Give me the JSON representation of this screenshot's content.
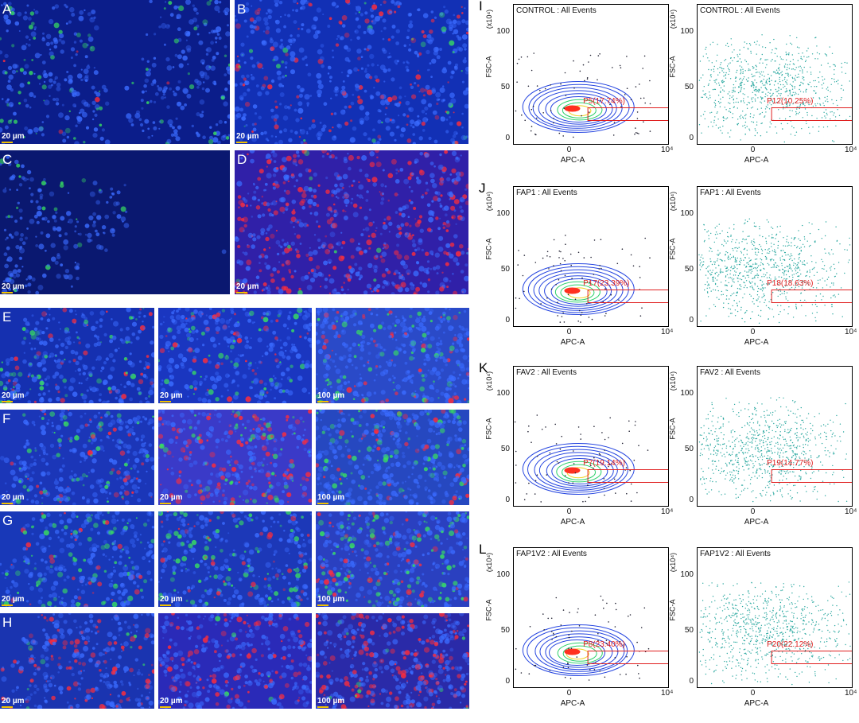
{
  "micro_panels": [
    {
      "id": "A",
      "label": "A",
      "scale": "20 µm"
    },
    {
      "id": "B",
      "label": "B",
      "scale": "20 µm"
    },
    {
      "id": "C",
      "label": "C",
      "scale": "20 µm"
    },
    {
      "id": "D",
      "label": "D",
      "scale": "20 µm"
    }
  ],
  "grid_rows": [
    {
      "label": "E",
      "scales": [
        "20 µm",
        "20 µm",
        "100 µm"
      ]
    },
    {
      "label": "F",
      "scales": [
        "20 µm",
        "20 µm",
        "100 µm"
      ]
    },
    {
      "label": "G",
      "scales": [
        "20 µm",
        "20 µm",
        "100 µm"
      ]
    },
    {
      "label": "H",
      "scales": [
        "20 µm",
        "20 µm",
        "100 µm"
      ]
    }
  ],
  "flow_rows": [
    {
      "label": "I",
      "left": {
        "title": "CONTROL : All Events",
        "gate": "P5(17.74%)"
      },
      "right": {
        "title": "CONTROL : All Events",
        "gate": "P12(10.25%)"
      }
    },
    {
      "label": "J",
      "left": {
        "title": "FAP1 : All Events",
        "gate": "P17(23.39%)"
      },
      "right": {
        "title": "FAP1 : All Events",
        "gate": "P18(18.63%)"
      }
    },
    {
      "label": "K",
      "left": {
        "title": "FAV2 : All Events",
        "gate": "P7(19.14%)"
      },
      "right": {
        "title": "FAV2 : All Events",
        "gate": "P19(14.77%)"
      }
    },
    {
      "label": "L",
      "left": {
        "title": "FAP1V2 : All Events",
        "gate": "P8(23.40%)"
      },
      "right": {
        "title": "FAP1V2 : All Events",
        "gate": "P20(22.12%)"
      }
    }
  ],
  "axes": {
    "xlabel": "APC-A",
    "ylabel": "FSC-A",
    "yunit": "(x10⁴)",
    "yticks": [
      "100",
      "50",
      "0"
    ],
    "xticks": [
      "0",
      "10⁴"
    ]
  },
  "colors": {
    "nuclei": "#1a3fd9",
    "green": "#38e060",
    "red": "#ff2d3a",
    "gate": "#e02020",
    "contour": "#2545e0",
    "dots": "#2aa8a0"
  }
}
